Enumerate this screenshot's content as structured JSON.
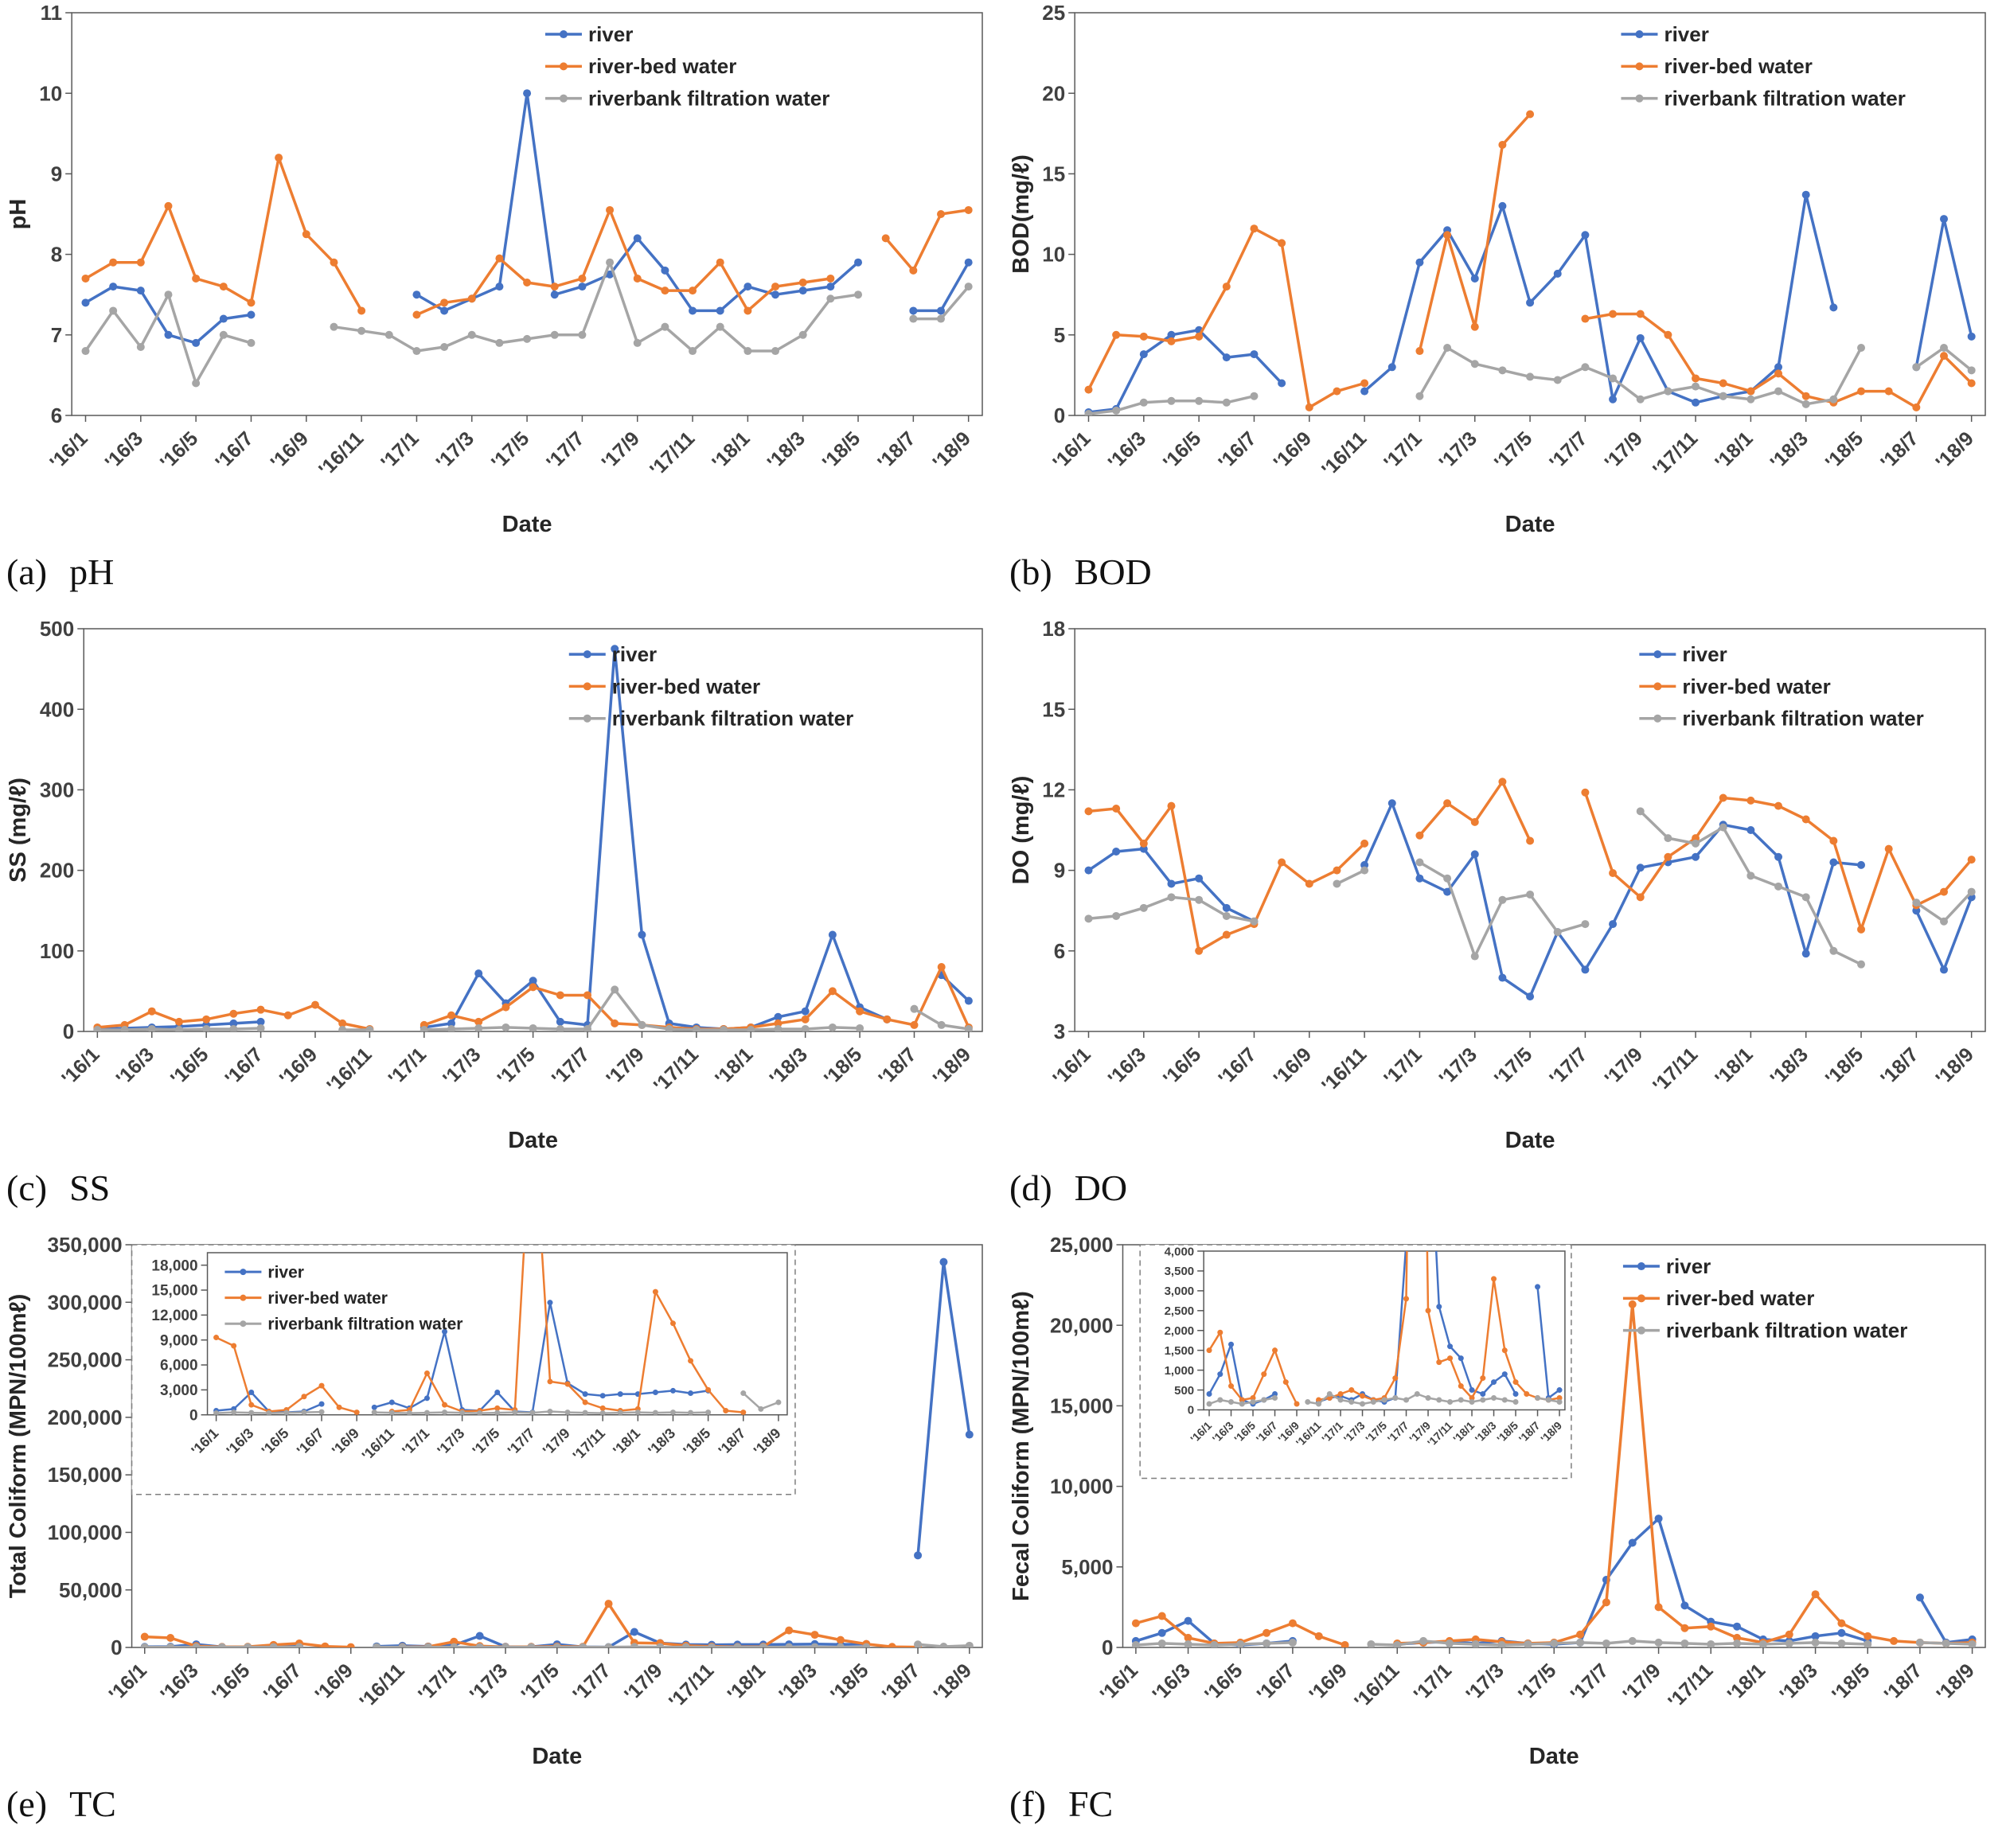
{
  "figure": {
    "x_axis_label": "Date",
    "x_ticklabels": [
      "'16/1",
      "'16/3",
      "'16/5",
      "'16/7",
      "'16/9",
      "'16/11",
      "'17/1",
      "'17/3",
      "'17/5",
      "'17/7",
      "'17/9",
      "'17/11",
      "'18/1",
      "'18/3",
      "'18/5",
      "'18/7",
      "'18/9"
    ],
    "n_points": 33,
    "tick_every": 2,
    "legend_labels": [
      "river",
      "river-bed water",
      "riverbank filtration water"
    ],
    "colors": [
      "#4472C4",
      "#ED7D31",
      "#A5A5A5"
    ]
  },
  "chart_data": [
    {
      "id": "ph",
      "type": "line",
      "caption_index": "(a)",
      "caption": "pH",
      "ylabel": "pH",
      "ylim": [
        6,
        11
      ],
      "yticks": [
        6,
        7,
        8,
        9,
        10,
        11
      ],
      "legend": {
        "pos": "plot",
        "x": 0.52,
        "y": 0.01
      },
      "series": [
        {
          "name": "river",
          "values": [
            7.4,
            7.6,
            7.55,
            7.0,
            6.9,
            7.2,
            7.25,
            null,
            null,
            null,
            null,
            null,
            7.5,
            7.3,
            7.45,
            7.6,
            10.0,
            7.5,
            7.6,
            7.75,
            8.2,
            7.8,
            7.3,
            7.3,
            7.6,
            7.5,
            7.55,
            7.6,
            7.9,
            null,
            7.3,
            7.3,
            7.9
          ]
        },
        {
          "name": "river-bed water",
          "values": [
            7.7,
            7.9,
            7.9,
            8.6,
            7.7,
            7.6,
            7.4,
            9.2,
            8.25,
            7.9,
            7.3,
            null,
            7.25,
            7.4,
            7.45,
            7.95,
            7.65,
            7.6,
            7.7,
            8.55,
            7.7,
            7.55,
            7.55,
            7.9,
            7.3,
            7.6,
            7.65,
            7.7,
            null,
            8.2,
            7.8,
            8.5,
            8.55
          ]
        },
        {
          "name": "riverbank filtration water",
          "values": [
            6.8,
            7.3,
            6.85,
            7.5,
            6.4,
            7.0,
            6.9,
            null,
            null,
            7.1,
            7.05,
            7.0,
            6.8,
            6.85,
            7.0,
            6.9,
            6.95,
            7.0,
            7.0,
            7.9,
            6.9,
            7.1,
            6.8,
            7.1,
            6.8,
            6.8,
            7.0,
            7.45,
            7.5,
            null,
            7.2,
            7.2,
            7.6
          ]
        }
      ]
    },
    {
      "id": "bod",
      "type": "line",
      "caption_index": "(b)",
      "caption": "BOD",
      "ylabel": "BOD(mg/ℓ)",
      "ylim": [
        0,
        25
      ],
      "yticks": [
        0,
        5,
        10,
        15,
        20,
        25
      ],
      "legend": {
        "pos": "plot",
        "x": 0.6,
        "y": 0.01
      },
      "series": [
        {
          "name": "river",
          "values": [
            0.2,
            0.4,
            3.8,
            5.0,
            5.3,
            3.6,
            3.8,
            2.0,
            null,
            null,
            1.5,
            3.0,
            9.5,
            11.5,
            8.5,
            13.0,
            7.0,
            8.8,
            11.2,
            1.0,
            4.8,
            1.5,
            0.8,
            1.2,
            1.5,
            3.0,
            13.7,
            6.7,
            null,
            null,
            3.0,
            12.2,
            4.9
          ]
        },
        {
          "name": "river-bed water",
          "values": [
            1.6,
            5.0,
            4.9,
            4.6,
            4.9,
            8.0,
            11.6,
            10.7,
            0.5,
            1.5,
            2.0,
            null,
            4.0,
            11.2,
            5.5,
            16.8,
            18.7,
            null,
            6.0,
            6.3,
            6.3,
            5.0,
            2.3,
            2.0,
            1.5,
            2.6,
            1.2,
            0.8,
            1.5,
            1.5,
            0.5,
            3.7,
            2.0
          ]
        },
        {
          "name": "riverbank filtration water",
          "values": [
            0.1,
            0.3,
            0.8,
            0.9,
            0.9,
            0.8,
            1.2,
            null,
            null,
            null,
            null,
            null,
            1.2,
            4.2,
            3.2,
            2.8,
            2.4,
            2.2,
            3.0,
            2.3,
            1.0,
            1.5,
            1.8,
            1.2,
            1.0,
            1.5,
            0.7,
            1.0,
            4.2,
            null,
            3.0,
            4.2,
            2.8
          ]
        }
      ]
    },
    {
      "id": "ss",
      "type": "line",
      "caption_index": "(c)",
      "caption": "SS",
      "ylabel": "SS (mg/ℓ)",
      "ylim": [
        0,
        500
      ],
      "yticks": [
        0,
        100,
        200,
        300,
        400,
        500
      ],
      "legend": {
        "pos": "plot",
        "x": 0.54,
        "y": 0.02
      },
      "series": [
        {
          "name": "river",
          "values": [
            3,
            4,
            5,
            6,
            8,
            10,
            12,
            null,
            null,
            null,
            null,
            null,
            5,
            10,
            72,
            35,
            63,
            12,
            8,
            475,
            120,
            10,
            5,
            3,
            5,
            18,
            25,
            120,
            30,
            15,
            null,
            70,
            38
          ]
        },
        {
          "name": "river-bed water",
          "values": [
            5,
            8,
            25,
            12,
            15,
            22,
            27,
            20,
            33,
            10,
            3,
            null,
            8,
            20,
            12,
            30,
            55,
            45,
            45,
            10,
            8,
            5,
            3,
            3,
            5,
            10,
            15,
            50,
            25,
            15,
            8,
            80,
            5
          ]
        },
        {
          "name": "riverbank filtration water",
          "values": [
            2,
            2,
            3,
            2,
            3,
            3,
            4,
            null,
            null,
            2,
            2,
            null,
            2,
            3,
            4,
            5,
            4,
            3,
            3,
            52,
            8,
            3,
            2,
            2,
            2,
            3,
            3,
            5,
            4,
            null,
            28,
            8,
            3
          ]
        }
      ]
    },
    {
      "id": "do",
      "type": "line",
      "caption_index": "(d)",
      "caption": "DO",
      "ylabel": "DO (mg/ℓ)",
      "ylim": [
        3,
        18
      ],
      "yticks": [
        3,
        6,
        9,
        12,
        15,
        18
      ],
      "legend": {
        "pos": "plot",
        "x": 0.62,
        "y": 0.02
      },
      "series": [
        {
          "name": "river",
          "values": [
            9.0,
            9.7,
            9.8,
            8.5,
            8.7,
            7.6,
            7.1,
            null,
            null,
            null,
            9.2,
            11.5,
            8.7,
            8.2,
            9.6,
            5.0,
            4.3,
            6.7,
            5.3,
            7.0,
            9.1,
            9.3,
            9.5,
            10.7,
            10.5,
            9.5,
            5.9,
            9.3,
            9.2,
            null,
            7.5,
            5.3,
            8.0
          ]
        },
        {
          "name": "river-bed water",
          "values": [
            11.2,
            11.3,
            10.0,
            11.4,
            6.0,
            6.6,
            7.0,
            9.3,
            8.5,
            9.0,
            10.0,
            null,
            10.3,
            11.5,
            10.8,
            12.3,
            10.1,
            null,
            11.9,
            8.9,
            8.0,
            9.5,
            10.2,
            11.7,
            11.6,
            11.4,
            10.9,
            10.1,
            6.8,
            9.8,
            7.7,
            8.2,
            9.4
          ]
        },
        {
          "name": "riverbank filtration water",
          "values": [
            7.2,
            7.3,
            7.6,
            8.0,
            7.9,
            7.3,
            7.1,
            null,
            null,
            8.5,
            9.0,
            null,
            9.3,
            8.7,
            5.8,
            7.9,
            8.1,
            6.7,
            7.0,
            null,
            11.2,
            10.2,
            10.0,
            10.6,
            8.8,
            8.4,
            8.0,
            6.0,
            5.5,
            null,
            7.8,
            7.1,
            8.2
          ]
        }
      ]
    },
    {
      "id": "tc",
      "type": "line",
      "caption_index": "(e)",
      "caption": "TC",
      "ylabel": "Total Coliform (MPN/100mℓ)",
      "ylim": [
        0,
        350000
      ],
      "yticks": [
        0,
        50000,
        100000,
        150000,
        200000,
        250000,
        300000,
        350000
      ],
      "legend": {
        "pos": "inset",
        "x": 0.03,
        "y": 0.03
      },
      "inset": {
        "x0": 0.0,
        "x1": 0.78,
        "y0": 0.0,
        "y1": 0.62,
        "ylim": [
          0,
          19500
        ],
        "yticks": [
          0,
          3000,
          6000,
          9000,
          12000,
          15000,
          18000
        ],
        "margins": {
          "l": 95,
          "r": 10,
          "t": 10,
          "b": 100
        },
        "tickF": 19
      },
      "series": [
        {
          "name": "river",
          "values": [
            500,
            700,
            2700,
            400,
            300,
            400,
            1300,
            null,
            null,
            900,
            1500,
            800,
            2000,
            10000,
            600,
            500,
            2700,
            400,
            300,
            13500,
            3800,
            2500,
            2300,
            2500,
            2500,
            2700,
            2900,
            2600,
            2900,
            null,
            80000,
            335000,
            185000
          ]
        },
        {
          "name": "river-bed water",
          "values": [
            9300,
            8300,
            1200,
            400,
            600,
            2200,
            3500,
            900,
            300,
            null,
            400,
            600,
            5000,
            1200,
            400,
            500,
            800,
            600,
            38000,
            4000,
            3700,
            1500,
            800,
            500,
            700,
            14800,
            11000,
            6500,
            3000,
            500,
            300,
            null,
            null
          ]
        },
        {
          "name": "riverbank filtration water",
          "values": [
            200,
            300,
            250,
            200,
            250,
            300,
            350,
            null,
            null,
            300,
            250,
            200,
            250,
            300,
            250,
            200,
            250,
            300,
            250,
            400,
            300,
            250,
            200,
            250,
            300,
            250,
            300,
            250,
            300,
            null,
            2600,
            700,
            1500
          ]
        }
      ]
    },
    {
      "id": "fc",
      "type": "line",
      "caption_index": "(f)",
      "caption": "FC",
      "ylabel": "Fecal Coliform (MPN/100mℓ)",
      "ylim": [
        0,
        25000
      ],
      "yticks": [
        0,
        5000,
        10000,
        15000,
        20000,
        25000
      ],
      "legend": {
        "pos": "plot",
        "x": 0.58,
        "y": 0.01
      },
      "inset": {
        "x0": 0.02,
        "x1": 0.52,
        "y0": 0.0,
        "y1": 0.58,
        "ylim": [
          0,
          4000
        ],
        "yticks": [
          0,
          500,
          1000,
          1500,
          2000,
          2500,
          3000,
          3500,
          4000
        ],
        "margins": {
          "l": 80,
          "r": 8,
          "t": 8,
          "b": 86
        },
        "tickF": 15
      },
      "series": [
        {
          "name": "river",
          "values": [
            400,
            900,
            1650,
            250,
            150,
            250,
            400,
            null,
            null,
            null,
            200,
            300,
            350,
            250,
            400,
            250,
            200,
            300,
            4200,
            6500,
            8000,
            2600,
            1600,
            1300,
            500,
            400,
            700,
            900,
            400,
            null,
            3100,
            300,
            500
          ]
        },
        {
          "name": "river-bed water",
          "values": [
            1500,
            1950,
            600,
            250,
            300,
            900,
            1500,
            700,
            150,
            null,
            250,
            300,
            400,
            500,
            350,
            250,
            300,
            800,
            2800,
            21300,
            2500,
            1200,
            1300,
            600,
            300,
            800,
            3300,
            1500,
            700,
            400,
            300,
            250,
            300
          ]
        },
        {
          "name": "riverbank filtration water",
          "values": [
            150,
            250,
            200,
            150,
            200,
            250,
            300,
            null,
            null,
            200,
            150,
            400,
            250,
            200,
            150,
            200,
            250,
            300,
            250,
            400,
            300,
            250,
            200,
            250,
            200,
            250,
            300,
            250,
            200,
            null,
            300,
            250,
            200
          ]
        }
      ]
    }
  ]
}
